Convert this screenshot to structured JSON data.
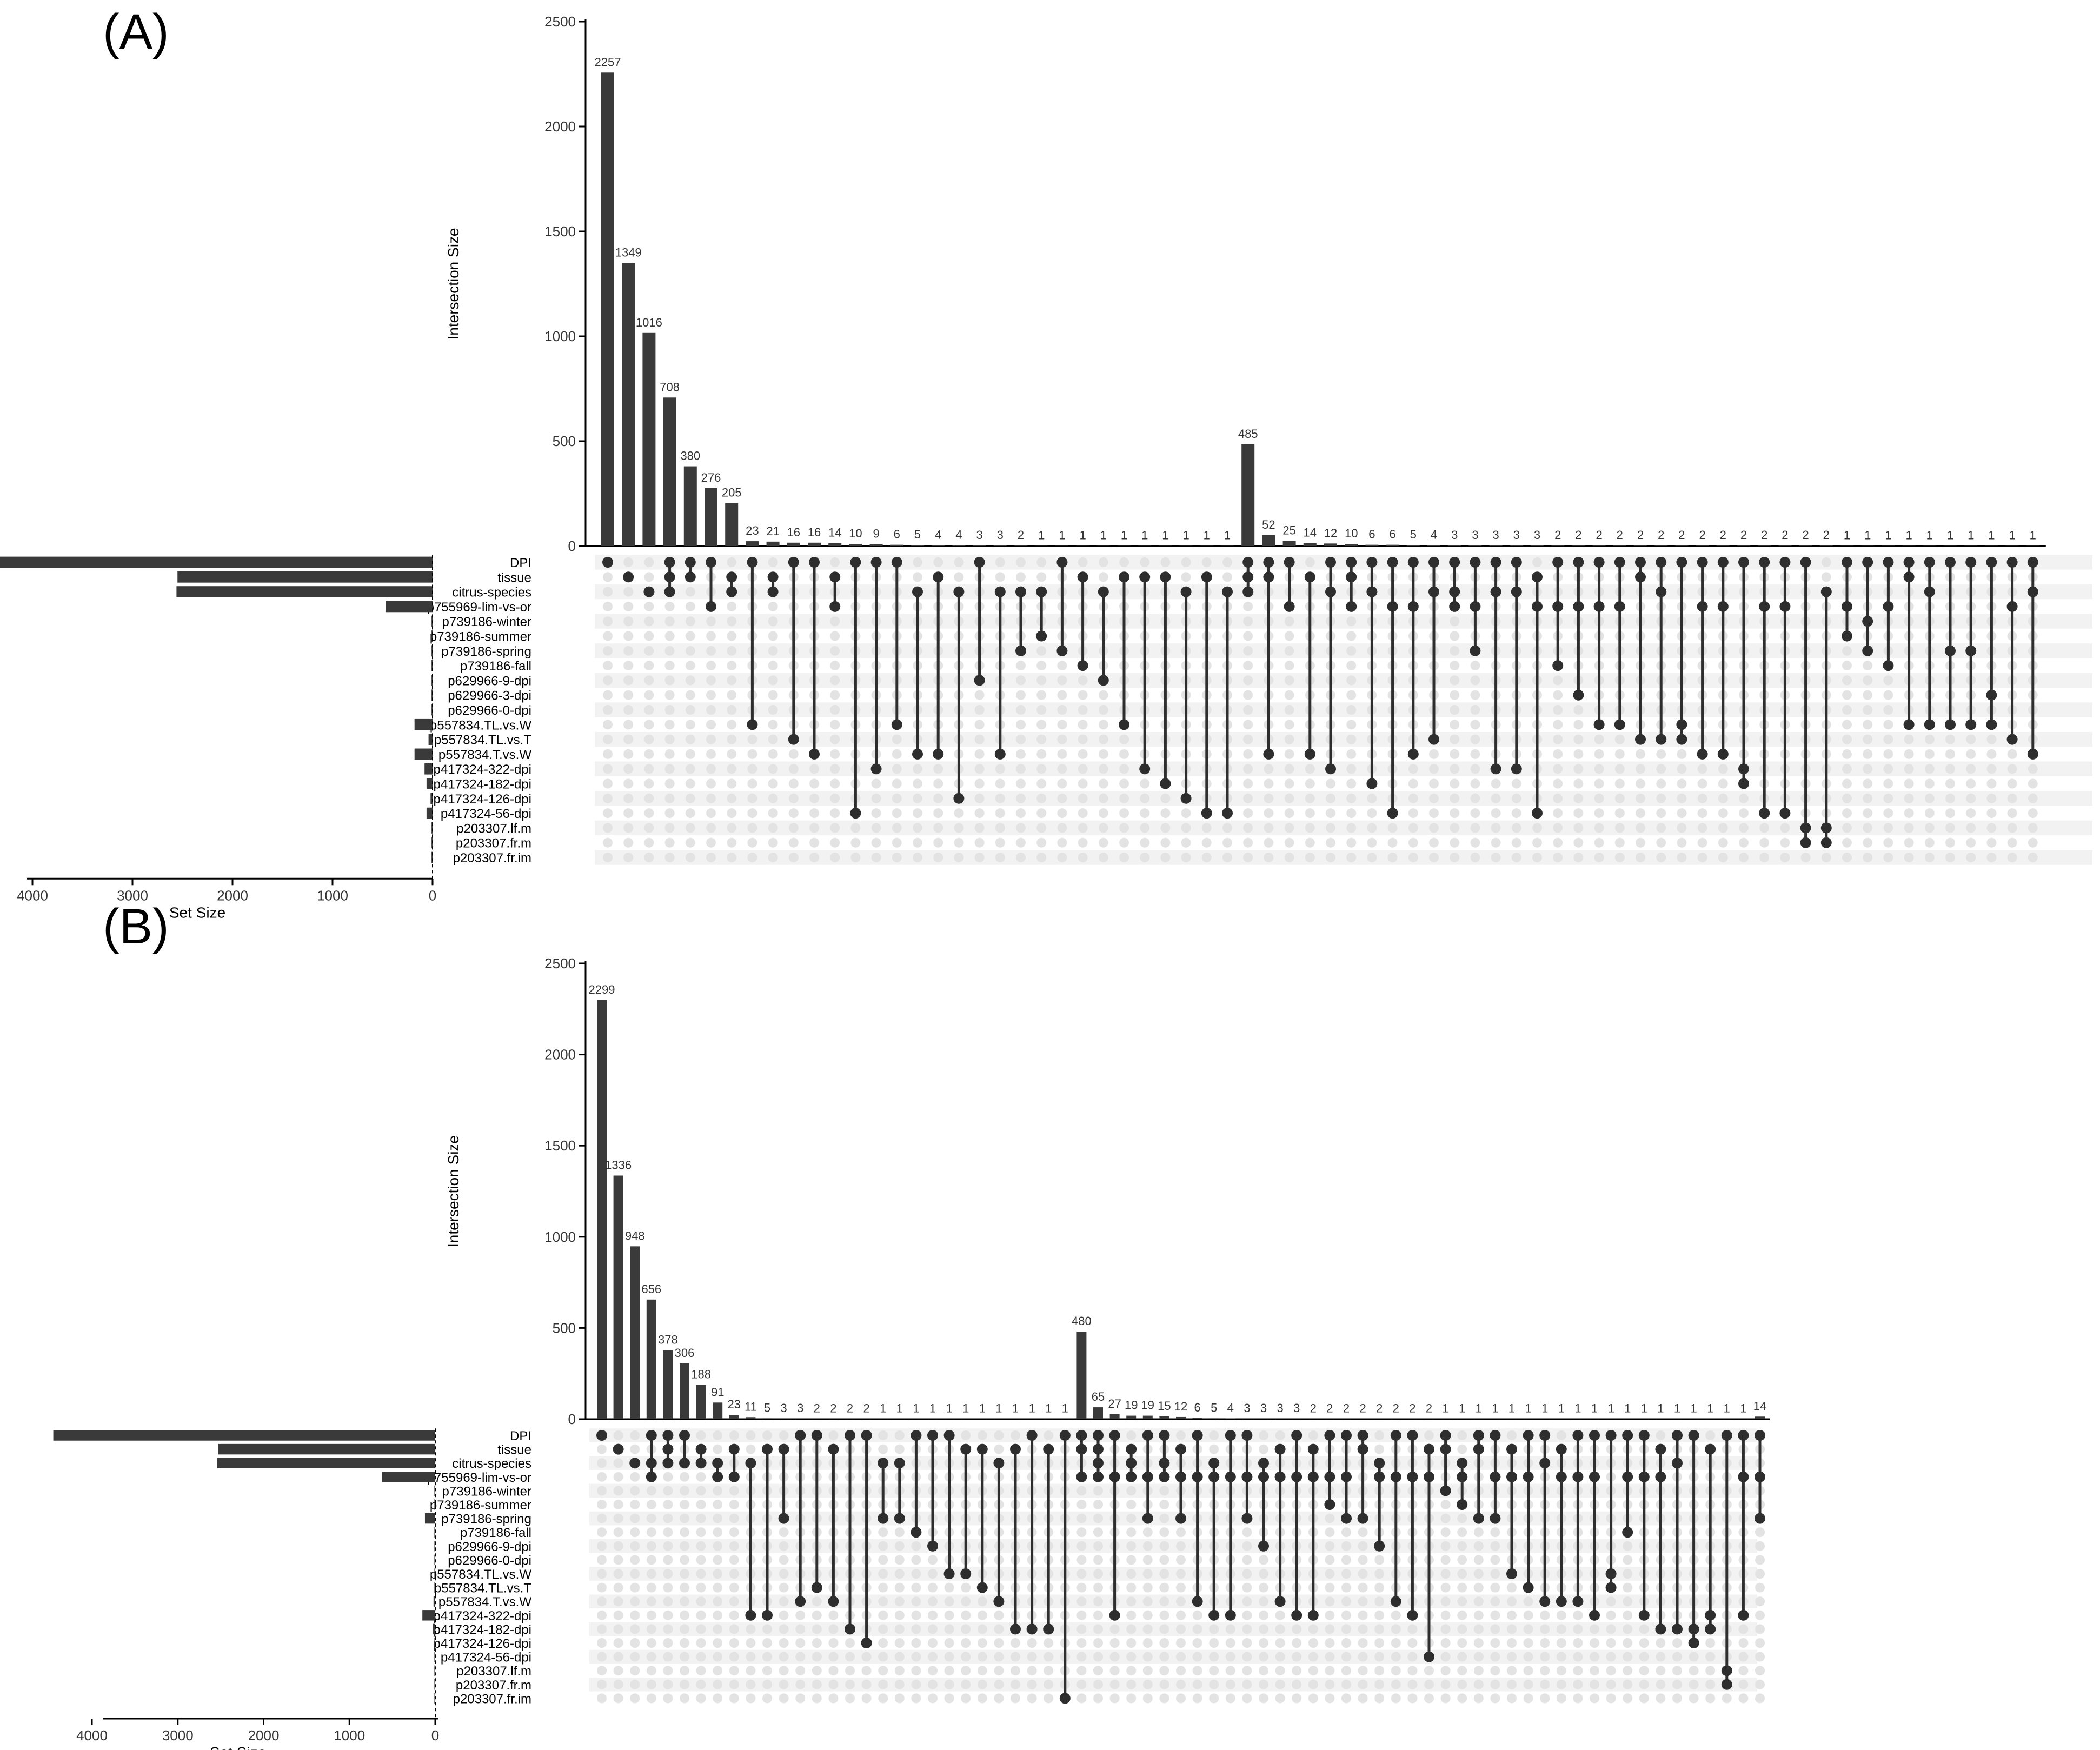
{
  "chart_data": [
    {
      "panel_label": "(A)",
      "type": "upset",
      "ylabel": "Intersection Size",
      "ylim": [
        0,
        2500
      ],
      "yticks": [
        0,
        500,
        1000,
        1500,
        2000,
        2500
      ],
      "set_size_label": "Set Size",
      "set_size_ticks": [
        4000,
        3000,
        2000,
        1000,
        0
      ],
      "sets": [
        "DPI",
        "tissue",
        "citrus-species",
        "p755969-lim-vs-or",
        "p739186-winter",
        "p739186-summer",
        "p739186-spring",
        "p739186-fall",
        "p629966-9-dpi",
        "p629966-3-dpi",
        "p629966-0-dpi",
        "p557834.TL.vs.W",
        "p557834.TL.vs.T",
        "p557834.T.vs.W",
        "p417324-322-dpi",
        "p417324-182-dpi",
        "p417324-126-dpi",
        "p417324-56-dpi",
        "p203307.lf.m",
        "p203307.fr.m",
        "p203307.fr.im"
      ],
      "set_sizes": [
        4450,
        2550,
        2560,
        470,
        10,
        10,
        10,
        10,
        10,
        10,
        10,
        180,
        40,
        180,
        80,
        60,
        20,
        60,
        10,
        10,
        10
      ],
      "intersections": [
        {
          "value": 2257,
          "sets": [
            0
          ]
        },
        {
          "value": 1349,
          "sets": [
            1
          ]
        },
        {
          "value": 1016,
          "sets": [
            2
          ]
        },
        {
          "value": 708,
          "sets": [
            0,
            1,
            2
          ]
        },
        {
          "value": 380,
          "sets": [
            0,
            1
          ]
        },
        {
          "value": 276,
          "sets": [
            0,
            3
          ]
        },
        {
          "value": 205,
          "sets": [
            1,
            2
          ]
        },
        {
          "value": 23,
          "sets": [
            0,
            11
          ]
        },
        {
          "value": 21,
          "sets": [
            1,
            2
          ]
        },
        {
          "value": 16,
          "sets": [
            0,
            12
          ]
        },
        {
          "value": 16,
          "sets": [
            0,
            13
          ]
        },
        {
          "value": 14,
          "sets": [
            1,
            3
          ]
        },
        {
          "value": 10,
          "sets": [
            0,
            17
          ]
        },
        {
          "value": 9,
          "sets": [
            0,
            14
          ]
        },
        {
          "value": 6,
          "sets": [
            0,
            11
          ]
        },
        {
          "value": 5,
          "sets": [
            2,
            13
          ]
        },
        {
          "value": 4,
          "sets": [
            1,
            13
          ]
        },
        {
          "value": 4,
          "sets": [
            2,
            16
          ]
        },
        {
          "value": 3,
          "sets": [
            0,
            8
          ]
        },
        {
          "value": 3,
          "sets": [
            2,
            13
          ]
        },
        {
          "value": 2,
          "sets": [
            2,
            6
          ]
        },
        {
          "value": 1,
          "sets": [
            2,
            5
          ]
        },
        {
          "value": 1,
          "sets": [
            0,
            6
          ]
        },
        {
          "value": 1,
          "sets": [
            1,
            7
          ]
        },
        {
          "value": 1,
          "sets": [
            2,
            8
          ]
        },
        {
          "value": 1,
          "sets": [
            1,
            11
          ]
        },
        {
          "value": 1,
          "sets": [
            1,
            14
          ]
        },
        {
          "value": 1,
          "sets": [
            1,
            15
          ]
        },
        {
          "value": 1,
          "sets": [
            2,
            16
          ]
        },
        {
          "value": 1,
          "sets": [
            1,
            17
          ]
        },
        {
          "value": 1,
          "sets": [
            2,
            17
          ]
        },
        {
          "value": 485,
          "sets": [
            0,
            1,
            2
          ]
        },
        {
          "value": 52,
          "sets": [
            0,
            1,
            13
          ]
        },
        {
          "value": 25,
          "sets": [
            0,
            3
          ]
        },
        {
          "value": 14,
          "sets": [
            1,
            13
          ]
        },
        {
          "value": 12,
          "sets": [
            0,
            2,
            14
          ]
        },
        {
          "value": 10,
          "sets": [
            0,
            1,
            3
          ]
        },
        {
          "value": 6,
          "sets": [
            0,
            2,
            15
          ]
        },
        {
          "value": 6,
          "sets": [
            0,
            3,
            17
          ]
        },
        {
          "value": 5,
          "sets": [
            0,
            3,
            13
          ]
        },
        {
          "value": 4,
          "sets": [
            0,
            2,
            12
          ]
        },
        {
          "value": 3,
          "sets": [
            0,
            2,
            3
          ]
        },
        {
          "value": 3,
          "sets": [
            0,
            3,
            6
          ]
        },
        {
          "value": 3,
          "sets": [
            0,
            2,
            14
          ]
        },
        {
          "value": 3,
          "sets": [
            0,
            2,
            14
          ]
        },
        {
          "value": 3,
          "sets": [
            1,
            3,
            17
          ]
        },
        {
          "value": 2,
          "sets": [
            0,
            3,
            7
          ]
        },
        {
          "value": 2,
          "sets": [
            0,
            3,
            9
          ]
        },
        {
          "value": 2,
          "sets": [
            0,
            3,
            11
          ]
        },
        {
          "value": 2,
          "sets": [
            0,
            3,
            11
          ]
        },
        {
          "value": 2,
          "sets": [
            0,
            1,
            12
          ]
        },
        {
          "value": 2,
          "sets": [
            0,
            2,
            12
          ]
        },
        {
          "value": 2,
          "sets": [
            0,
            11,
            12
          ]
        },
        {
          "value": 2,
          "sets": [
            0,
            3,
            13
          ]
        },
        {
          "value": 2,
          "sets": [
            0,
            3,
            13
          ]
        },
        {
          "value": 2,
          "sets": [
            0,
            14,
            15
          ]
        },
        {
          "value": 2,
          "sets": [
            0,
            3,
            17
          ]
        },
        {
          "value": 2,
          "sets": [
            0,
            3,
            17
          ]
        },
        {
          "value": 2,
          "sets": [
            0,
            18,
            19
          ]
        },
        {
          "value": 2,
          "sets": [
            2,
            18,
            19
          ]
        },
        {
          "value": 1,
          "sets": [
            0,
            3,
            5
          ]
        },
        {
          "value": 1,
          "sets": [
            0,
            4,
            6
          ]
        },
        {
          "value": 1,
          "sets": [
            0,
            3,
            7
          ]
        },
        {
          "value": 1,
          "sets": [
            0,
            1,
            11
          ]
        },
        {
          "value": 1,
          "sets": [
            0,
            2,
            11
          ]
        },
        {
          "value": 1,
          "sets": [
            0,
            6,
            11
          ]
        },
        {
          "value": 1,
          "sets": [
            0,
            6,
            11
          ]
        },
        {
          "value": 1,
          "sets": [
            0,
            9,
            11
          ]
        },
        {
          "value": 1,
          "sets": [
            0,
            3,
            12
          ]
        },
        {
          "value": 1,
          "sets": [
            0,
            2,
            13
          ]
        }
      ]
    },
    {
      "panel_label": "(B)",
      "type": "upset",
      "ylabel": "Intersection Size",
      "ylim": [
        0,
        2500
      ],
      "yticks": [
        0,
        500,
        1000,
        1500,
        2000,
        2500
      ],
      "set_size_label": "Set Size",
      "set_size_ticks": [
        4000,
        3000,
        2000,
        1000,
        0
      ],
      "sets": [
        "DPI",
        "tissue",
        "citrus-species",
        "p755969-lim-vs-or",
        "p739186-winter",
        "p739186-summer",
        "p739186-spring",
        "p739186-fall",
        "p629966-9-dpi",
        "p629966-0-dpi",
        "p557834.TL.vs.W",
        "p557834.TL.vs.T",
        "p557834.T.vs.W",
        "p417324-322-dpi",
        "p417324-182-dpi",
        "p417324-126-dpi",
        "p417324-56-dpi",
        "p203307.lf.m",
        "p203307.fr.m",
        "p203307.fr.im"
      ],
      "set_sizes": [
        4450,
        2530,
        2540,
        620,
        10,
        10,
        120,
        10,
        10,
        10,
        10,
        10,
        20,
        150,
        30,
        10,
        10,
        10,
        10,
        10
      ],
      "intersections": [
        {
          "value": 2299,
          "sets": [
            0
          ]
        },
        {
          "value": 1336,
          "sets": [
            1
          ]
        },
        {
          "value": 948,
          "sets": [
            2
          ]
        },
        {
          "value": 656,
          "sets": [
            0,
            2,
            3
          ]
        },
        {
          "value": 378,
          "sets": [
            0,
            1,
            2
          ]
        },
        {
          "value": 306,
          "sets": [
            0,
            2
          ]
        },
        {
          "value": 188,
          "sets": [
            1,
            2
          ]
        },
        {
          "value": 91,
          "sets": [
            2,
            3
          ]
        },
        {
          "value": 23,
          "sets": [
            1,
            3
          ]
        },
        {
          "value": 11,
          "sets": [
            2,
            13
          ]
        },
        {
          "value": 5,
          "sets": [
            1,
            13
          ]
        },
        {
          "value": 3,
          "sets": [
            1,
            6
          ]
        },
        {
          "value": 3,
          "sets": [
            0,
            12
          ]
        },
        {
          "value": 2,
          "sets": [
            0,
            11
          ]
        },
        {
          "value": 2,
          "sets": [
            1,
            12
          ]
        },
        {
          "value": 2,
          "sets": [
            0,
            14
          ]
        },
        {
          "value": 2,
          "sets": [
            0,
            15
          ]
        },
        {
          "value": 1,
          "sets": [
            2,
            6
          ]
        },
        {
          "value": 1,
          "sets": [
            2,
            6
          ]
        },
        {
          "value": 1,
          "sets": [
            0,
            7
          ]
        },
        {
          "value": 1,
          "sets": [
            0,
            8
          ]
        },
        {
          "value": 1,
          "sets": [
            0,
            10
          ]
        },
        {
          "value": 1,
          "sets": [
            1,
            10
          ]
        },
        {
          "value": 1,
          "sets": [
            1,
            11
          ]
        },
        {
          "value": 1,
          "sets": [
            2,
            12
          ]
        },
        {
          "value": 1,
          "sets": [
            1,
            14
          ]
        },
        {
          "value": 1,
          "sets": [
            0,
            14
          ]
        },
        {
          "value": 1,
          "sets": [
            1,
            14
          ]
        },
        {
          "value": 1,
          "sets": [
            0,
            19
          ]
        },
        {
          "value": 480,
          "sets": [
            0,
            1,
            3
          ]
        },
        {
          "value": 65,
          "sets": [
            0,
            1,
            2,
            3
          ]
        },
        {
          "value": 27,
          "sets": [
            0,
            3,
            13
          ]
        },
        {
          "value": 19,
          "sets": [
            1,
            2,
            3
          ]
        },
        {
          "value": 19,
          "sets": [
            0,
            3,
            6
          ]
        },
        {
          "value": 15,
          "sets": [
            0,
            2,
            3
          ]
        },
        {
          "value": 12,
          "sets": [
            1,
            3,
            6
          ]
        },
        {
          "value": 6,
          "sets": [
            0,
            3,
            12
          ]
        },
        {
          "value": 5,
          "sets": [
            2,
            3,
            13
          ]
        },
        {
          "value": 4,
          "sets": [
            0,
            3,
            13
          ]
        },
        {
          "value": 3,
          "sets": [
            0,
            3,
            6
          ]
        },
        {
          "value": 3,
          "sets": [
            2,
            3,
            8
          ]
        },
        {
          "value": 3,
          "sets": [
            1,
            3,
            12
          ]
        },
        {
          "value": 3,
          "sets": [
            0,
            3,
            13
          ]
        },
        {
          "value": 2,
          "sets": [
            1,
            3,
            13
          ]
        },
        {
          "value": 2,
          "sets": [
            0,
            3,
            5
          ]
        },
        {
          "value": 2,
          "sets": [
            0,
            3,
            6
          ]
        },
        {
          "value": 2,
          "sets": [
            0,
            1,
            6
          ]
        },
        {
          "value": 2,
          "sets": [
            2,
            3,
            8
          ]
        },
        {
          "value": 2,
          "sets": [
            0,
            3,
            12
          ]
        },
        {
          "value": 2,
          "sets": [
            0,
            3,
            13
          ]
        },
        {
          "value": 2,
          "sets": [
            1,
            3,
            16
          ]
        },
        {
          "value": 1,
          "sets": [
            0,
            1,
            4
          ]
        },
        {
          "value": 1,
          "sets": [
            2,
            3,
            5
          ]
        },
        {
          "value": 1,
          "sets": [
            0,
            1,
            6
          ]
        },
        {
          "value": 1,
          "sets": [
            0,
            3,
            6
          ]
        },
        {
          "value": 1,
          "sets": [
            1,
            3,
            10
          ]
        },
        {
          "value": 1,
          "sets": [
            0,
            3,
            11
          ]
        },
        {
          "value": 1,
          "sets": [
            0,
            2,
            12
          ]
        },
        {
          "value": 1,
          "sets": [
            1,
            3,
            12
          ]
        },
        {
          "value": 1,
          "sets": [
            0,
            3,
            12
          ]
        },
        {
          "value": 1,
          "sets": [
            0,
            3,
            13
          ]
        },
        {
          "value": 1,
          "sets": [
            0,
            10,
            11
          ]
        },
        {
          "value": 1,
          "sets": [
            0,
            3,
            7
          ]
        },
        {
          "value": 1,
          "sets": [
            0,
            3,
            13
          ]
        },
        {
          "value": 1,
          "sets": [
            1,
            3,
            14
          ]
        },
        {
          "value": 1,
          "sets": [
            0,
            2,
            14
          ]
        },
        {
          "value": 1,
          "sets": [
            0,
            14,
            15
          ]
        },
        {
          "value": 1,
          "sets": [
            1,
            13,
            14
          ]
        },
        {
          "value": 1,
          "sets": [
            0,
            17,
            18
          ]
        },
        {
          "value": 1,
          "sets": [
            0,
            3,
            13
          ]
        },
        {
          "value": 14,
          "sets": [
            0,
            3,
            6
          ]
        }
      ]
    }
  ]
}
